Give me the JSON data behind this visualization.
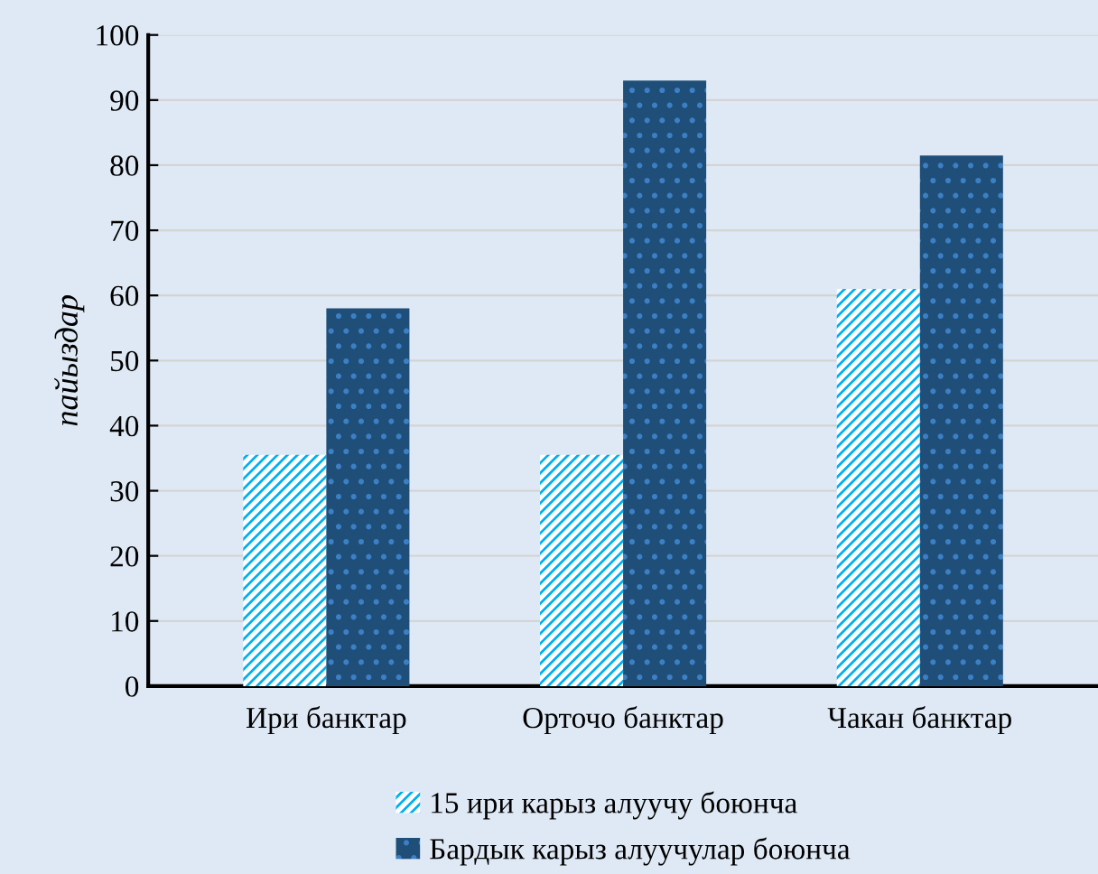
{
  "chart_data": {
    "type": "bar",
    "ylabel": "пайыздар",
    "categories": [
      "Ири банктар",
      "Орточо банктар",
      "Чакан банктар"
    ],
    "series": [
      {
        "name": "15 ири карыз алуучу боюнча",
        "color": "#00b0f0",
        "values": [
          35.5,
          35.5,
          61
        ]
      },
      {
        "name": "Бардык карыз алуучулар боюнча",
        "color": "#1f4e79",
        "values": [
          58,
          93,
          81.5
        ]
      }
    ],
    "ylim": [
      0,
      100
    ],
    "yticks": [
      0,
      10,
      20,
      30,
      40,
      50,
      60,
      70,
      80,
      90,
      100
    ],
    "grid": "y",
    "legend": "bottom"
  }
}
